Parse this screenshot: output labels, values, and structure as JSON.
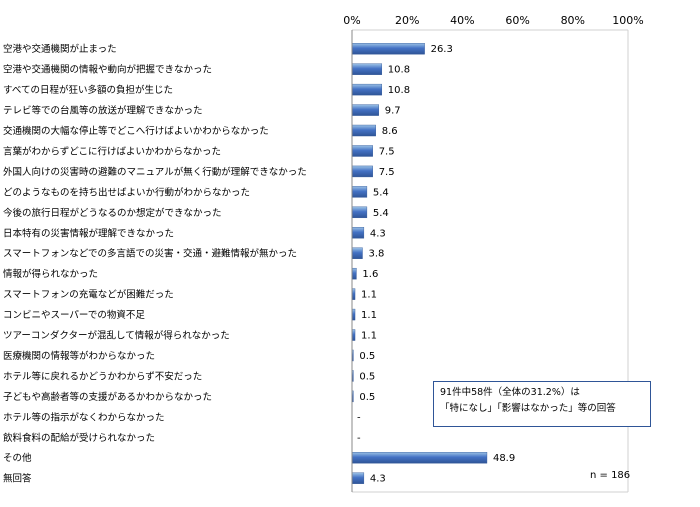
{
  "chart_data": {
    "type": "bar",
    "orientation": "horizontal",
    "categories": [
      "空港や交通機関が止まった",
      "空港や交通機関の情報や動向が把握できなかった",
      "すべての日程が狂い多額の負担が生じた",
      "テレビ等での台風等の放送が理解できなかった",
      "交通機関の大幅な停止等でどこへ行けばよいかわからなかった",
      "言葉がわからずどこに行けばよいかわからなかった",
      "外国人向けの災害時の避難のマニュアルが無く行動が理解できなかった",
      "どのようなものを持ち出せばよいか行動がわからなかった",
      "今後の旅行日程がどうなるのか想定ができなかった",
      "日本特有の災害情報が理解できなかった",
      "スマートフォンなどでの多言語での災害・交通・避難情報が無かった",
      "情報が得られなかった",
      "スマートフォンの充電などが困難だった",
      "コンビニやスーパーでの物資不足",
      "ツアーコンダクターが混乱して情報が得られなかった",
      "医療機関の情報等がわからなかった",
      "ホテル等に戻れるかどうかわからず不安だった",
      "子どもや高齢者等の支援があるかわからなかった",
      "ホテル等の指示がなくわからなかった",
      "飲料食料の配給が受けられなかった",
      "その他",
      "無回答"
    ],
    "values": [
      26.3,
      10.8,
      10.8,
      9.7,
      8.6,
      7.5,
      7.5,
      5.4,
      5.4,
      4.3,
      3.8,
      1.6,
      1.1,
      1.1,
      1.1,
      0.5,
      0.5,
      0.5,
      null,
      null,
      48.9,
      4.3
    ],
    "value_labels": [
      "26.3",
      "10.8",
      "10.8",
      "9.7",
      "8.6",
      "7.5",
      "7.5",
      "5.4",
      "5.4",
      "4.3",
      "3.8",
      "1.6",
      "1.1",
      "1.1",
      "1.1",
      "0.5",
      "0.5",
      "0.5",
      "-",
      "-",
      "48.9",
      "4.3"
    ],
    "x_ticks": [
      "0%",
      "20%",
      "40%",
      "60%",
      "80%",
      "100%"
    ],
    "xlim": [
      0,
      100
    ],
    "bar_color": "#4472c4",
    "grid": false
  },
  "callout": {
    "line1": "91件中58件（全体の31.2%）は",
    "line2": "「特になし」「影響はなかった」等の回答"
  },
  "sample_note": "n = 186"
}
